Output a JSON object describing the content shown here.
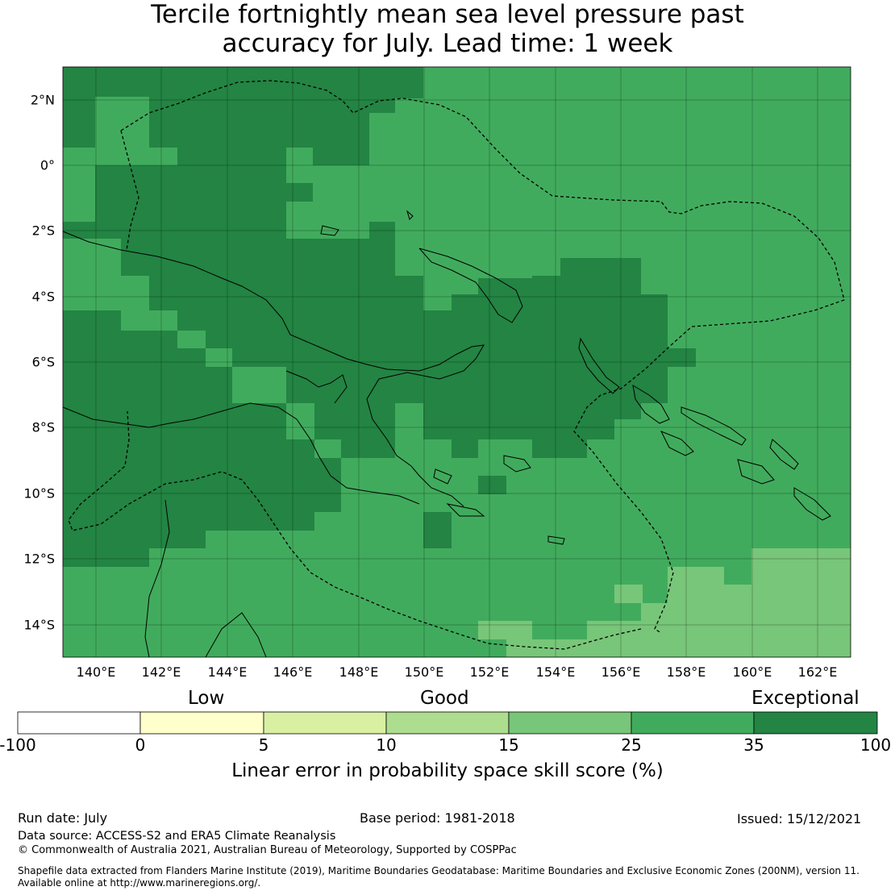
{
  "title_line1": "Tercile fortnightly mean sea level pressure past",
  "title_line2": "accuracy for July. Lead time: 1 week",
  "map": {
    "lon_range": [
      139,
      163
    ],
    "lat_range": [
      -15,
      3
    ],
    "lon_ticks": [
      "140°E",
      "142°E",
      "144°E",
      "146°E",
      "148°E",
      "150°E",
      "152°E",
      "154°E",
      "156°E",
      "158°E",
      "160°E",
      "162°E"
    ],
    "lat_ticks": [
      "2°N",
      "0°",
      "2°S",
      "4°S",
      "6°S",
      "8°S",
      "10°S",
      "12°S",
      "14°S"
    ]
  },
  "colorbar": {
    "categories": [
      "Low",
      "Good",
      "Exceptional"
    ],
    "ticks": [
      "-100",
      "0",
      "5",
      "10",
      "15",
      "25",
      "35",
      "100"
    ],
    "colors": [
      "#ffffff",
      "#ffffcc",
      "#d9f0a3",
      "#addd8e",
      "#78c679",
      "#41ab5d",
      "#238443"
    ],
    "label": "Linear error in probability space skill score (%)"
  },
  "footer": {
    "run_date": "Run date: July",
    "base_period": "Base period: 1981-2018",
    "issued": "Issued: 15/12/2021",
    "data_source": "Data source: ACCESS-S2 and ERA5 Climate Reanalysis",
    "copyright": "© Commonwealth of Australia 2021, Australian Bureau of Meteorology, Supported by COSPPac",
    "shapefile_line1": "Shapefile data extracted from Flanders Marine Institute (2019), Maritime Boundaries Geodatabase: Maritime Boundaries and Exclusive Economic Zones (200NM), version 11.",
    "shapefile_line2": "Available online at http://www.marineregions.org/."
  }
}
